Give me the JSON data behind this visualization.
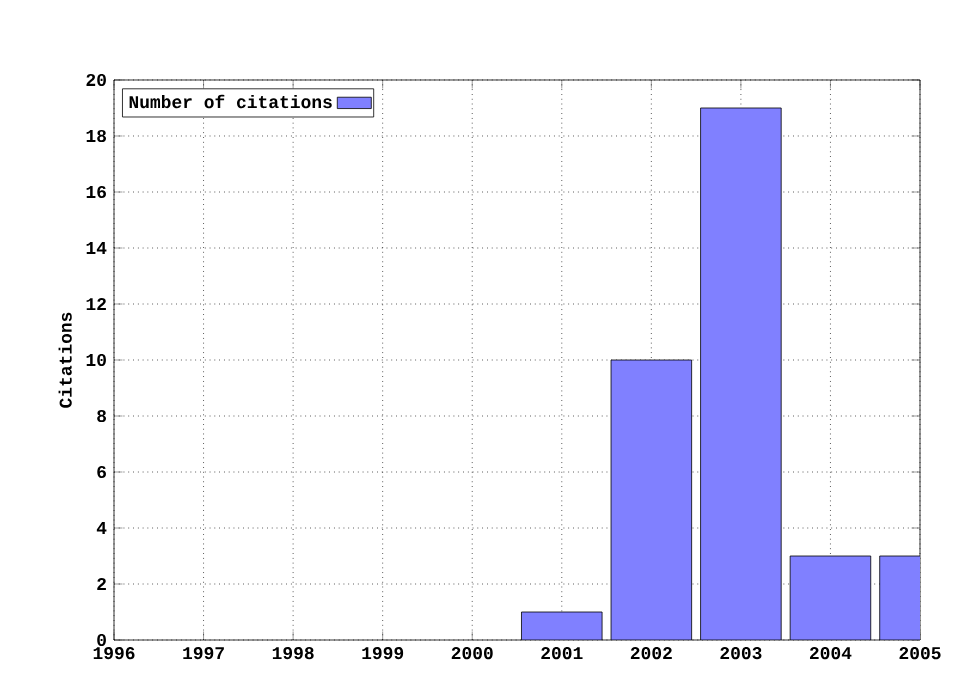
{
  "chart_data": {
    "type": "bar",
    "ylabel": "Citations",
    "x": [
      2001,
      2002,
      2003,
      2004,
      2005
    ],
    "series": [
      {
        "name": "Number of citations",
        "color": "#8080ff",
        "values": [
          1,
          10,
          19,
          3,
          3
        ]
      }
    ],
    "xlim": [
      1996,
      2005
    ],
    "xticks": [
      1996,
      1997,
      1998,
      1999,
      2000,
      2001,
      2002,
      2003,
      2004,
      2005
    ],
    "ylim": [
      0,
      20
    ],
    "yticks": [
      0,
      2,
      4,
      6,
      8,
      10,
      12,
      14,
      16,
      18,
      20
    ],
    "grid": true,
    "legend": "top left"
  }
}
